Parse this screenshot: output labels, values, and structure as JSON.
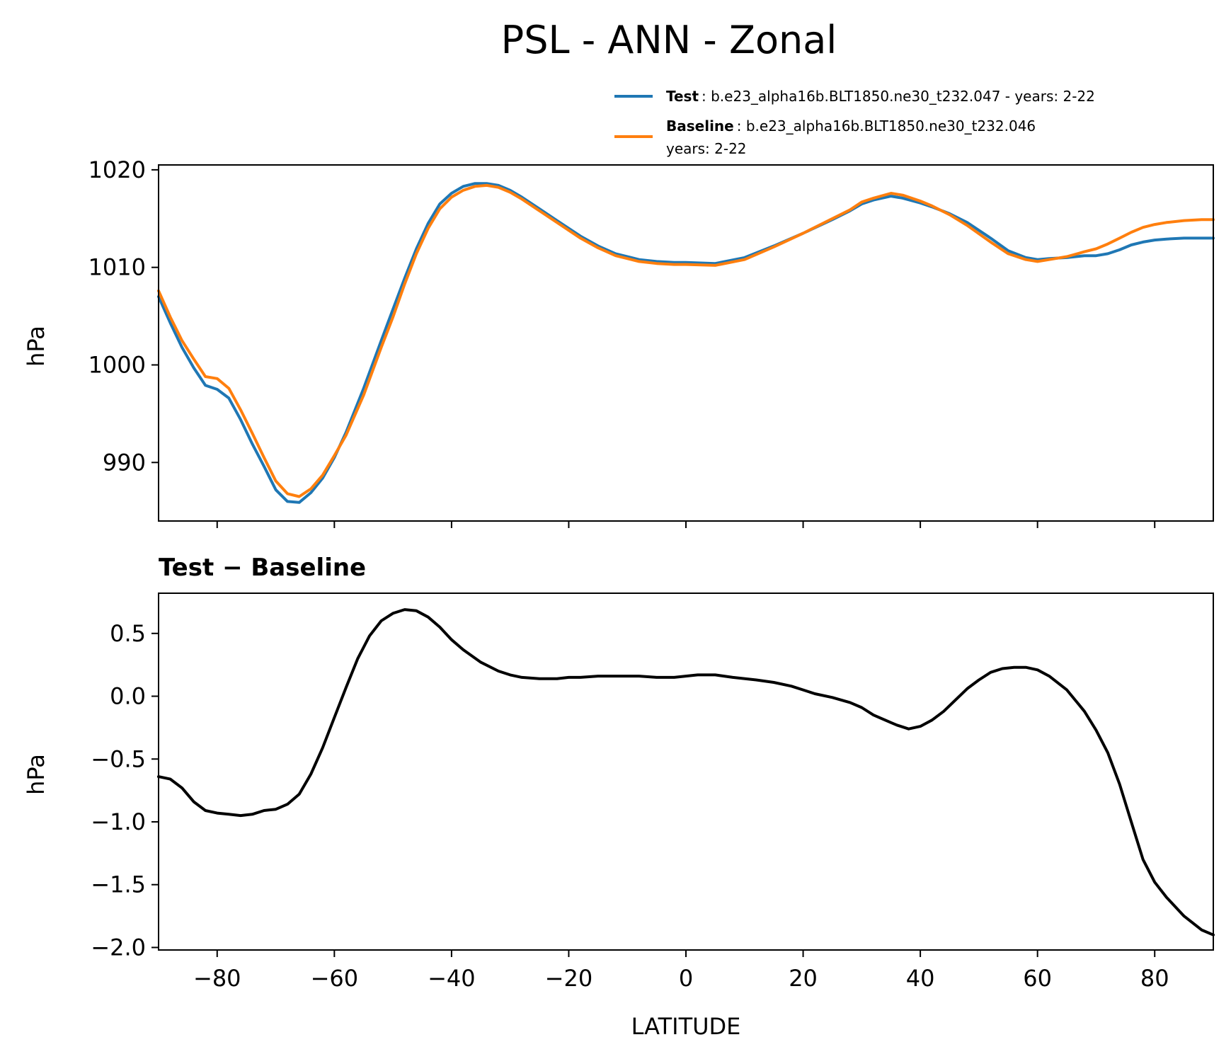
{
  "figure": {
    "title": "PSL - ANN - Zonal"
  },
  "legend": {
    "entries": [
      {
        "label": "Test",
        "detail": ": b.e23_alpha16b.BLT1850.ne30_t232.047 - years: 2-22",
        "detail2": "",
        "color": "#1f77b4"
      },
      {
        "label": "Baseline",
        "detail": ": b.e23_alpha16b.BLT1850.ne30_t232.046",
        "detail2": "years: 2-22",
        "color": "#ff7f0e"
      }
    ]
  },
  "chart_data": [
    {
      "type": "line",
      "title": "",
      "xlabel": "",
      "ylabel": "hPa",
      "xlim": [
        -90,
        90
      ],
      "ylim": [
        984,
        1020.5
      ],
      "xticks": [
        -80,
        -60,
        -40,
        -20,
        0,
        20,
        40,
        60,
        80
      ],
      "yticks": [
        990,
        1000,
        1010,
        1020
      ],
      "ytick_labels": [
        "990",
        "1000",
        "1010",
        "1020"
      ],
      "grid": false,
      "legend_position": "above-right",
      "series": [
        {
          "name": "Test",
          "color": "#1f77b4",
          "x": [
            -90,
            -88,
            -86,
            -84,
            -82,
            -80,
            -78,
            -76,
            -74,
            -72,
            -70,
            -68,
            -66,
            -64,
            -62,
            -60,
            -58,
            -55,
            -52,
            -50,
            -48,
            -46,
            -44,
            -42,
            -40,
            -38,
            -36,
            -34,
            -32,
            -30,
            -28,
            -25,
            -22,
            -18,
            -15,
            -12,
            -8,
            -5,
            -2,
            0,
            5,
            10,
            15,
            20,
            25,
            28,
            30,
            32,
            35,
            37,
            40,
            42,
            45,
            48,
            52,
            55,
            58,
            60,
            62,
            65,
            68,
            70,
            72,
            74,
            76,
            78,
            80,
            82,
            85,
            88,
            90
          ],
          "y": [
            1007.0,
            1004.3,
            1001.8,
            999.7,
            997.9,
            997.5,
            996.6,
            994.4,
            991.9,
            989.6,
            987.2,
            986.0,
            985.9,
            986.9,
            988.4,
            990.5,
            993.1,
            997.6,
            1002.5,
            1005.7,
            1008.9,
            1011.9,
            1014.5,
            1016.5,
            1017.6,
            1018.3,
            1018.6,
            1018.6,
            1018.4,
            1017.9,
            1017.2,
            1016.0,
            1014.8,
            1013.2,
            1012.2,
            1011.4,
            1010.8,
            1010.6,
            1010.5,
            1010.5,
            1010.4,
            1011.0,
            1012.2,
            1013.5,
            1014.9,
            1015.8,
            1016.5,
            1016.9,
            1017.3,
            1017.1,
            1016.6,
            1016.2,
            1015.5,
            1014.6,
            1013.0,
            1011.7,
            1011.0,
            1010.8,
            1010.9,
            1011.0,
            1011.2,
            1011.2,
            1011.4,
            1011.8,
            1012.3,
            1012.6,
            1012.8,
            1012.9,
            1013.0,
            1013.0,
            1013.0
          ]
        },
        {
          "name": "Baseline",
          "color": "#ff7f0e",
          "x": [
            -90,
            -88,
            -86,
            -84,
            -82,
            -80,
            -78,
            -76,
            -74,
            -72,
            -70,
            -68,
            -66,
            -64,
            -62,
            -60,
            -58,
            -55,
            -52,
            -50,
            -48,
            -46,
            -44,
            -42,
            -40,
            -38,
            -36,
            -34,
            -32,
            -30,
            -28,
            -25,
            -22,
            -18,
            -15,
            -12,
            -8,
            -5,
            -2,
            0,
            5,
            10,
            15,
            20,
            25,
            28,
            30,
            32,
            35,
            37,
            40,
            42,
            45,
            48,
            52,
            55,
            58,
            60,
            62,
            65,
            68,
            70,
            72,
            74,
            76,
            78,
            80,
            82,
            85,
            88,
            90
          ],
          "y": [
            1007.6,
            1004.9,
            1002.5,
            1000.6,
            998.8,
            998.6,
            997.6,
            995.4,
            993.0,
            990.5,
            988.1,
            986.8,
            986.5,
            987.3,
            988.7,
            990.7,
            992.8,
            996.9,
            1001.8,
            1004.9,
            1008.3,
            1011.4,
            1014.0,
            1016.0,
            1017.2,
            1017.9,
            1018.3,
            1018.4,
            1018.2,
            1017.7,
            1017.0,
            1015.8,
            1014.6,
            1013.0,
            1012.0,
            1011.2,
            1010.6,
            1010.4,
            1010.3,
            1010.3,
            1010.2,
            1010.8,
            1012.1,
            1013.5,
            1015.0,
            1015.9,
            1016.7,
            1017.1,
            1017.6,
            1017.4,
            1016.8,
            1016.3,
            1015.4,
            1014.3,
            1012.6,
            1011.4,
            1010.8,
            1010.6,
            1010.8,
            1011.1,
            1011.6,
            1011.9,
            1012.4,
            1013.0,
            1013.6,
            1014.1,
            1014.4,
            1014.6,
            1014.8,
            1014.9,
            1014.9
          ]
        }
      ]
    },
    {
      "type": "line",
      "title": "Test − Baseline",
      "xlabel": "LATITUDE",
      "ylabel": "hPa",
      "xlim": [
        -90,
        90
      ],
      "ylim": [
        -2.02,
        0.82
      ],
      "xticks": [
        -80,
        -60,
        -40,
        -20,
        0,
        20,
        40,
        60,
        80
      ],
      "xtick_labels": [
        "−80",
        "−60",
        "−40",
        "−20",
        "0",
        "20",
        "40",
        "60",
        "80"
      ],
      "yticks": [
        -2.0,
        -1.5,
        -1.0,
        -0.5,
        0.0,
        0.5
      ],
      "ytick_labels": [
        "−2.0",
        "−1.5",
        "−1.0",
        "−0.5",
        "0.0",
        "0.5"
      ],
      "grid": false,
      "series": [
        {
          "name": "",
          "color": "#000000",
          "x": [
            -90,
            -88,
            -86,
            -84,
            -82,
            -80,
            -78,
            -76,
            -74,
            -72,
            -70,
            -68,
            -66,
            -64,
            -62,
            -60,
            -58,
            -56,
            -54,
            -52,
            -50,
            -48,
            -46,
            -44,
            -42,
            -40,
            -38,
            -35,
            -32,
            -30,
            -28,
            -25,
            -22,
            -20,
            -18,
            -15,
            -12,
            -8,
            -5,
            -2,
            0,
            2,
            5,
            8,
            12,
            15,
            18,
            20,
            22,
            25,
            28,
            30,
            32,
            35,
            36,
            38,
            40,
            42,
            44,
            46,
            48,
            50,
            52,
            54,
            56,
            58,
            60,
            62,
            65,
            68,
            70,
            72,
            74,
            76,
            78,
            80,
            82,
            85,
            88,
            90
          ],
          "y": [
            -0.64,
            -0.66,
            -0.73,
            -0.84,
            -0.91,
            -0.93,
            -0.94,
            -0.95,
            -0.94,
            -0.91,
            -0.9,
            -0.86,
            -0.78,
            -0.62,
            -0.41,
            -0.17,
            0.07,
            0.3,
            0.48,
            0.6,
            0.66,
            0.69,
            0.68,
            0.63,
            0.55,
            0.45,
            0.37,
            0.27,
            0.2,
            0.17,
            0.15,
            0.14,
            0.14,
            0.15,
            0.15,
            0.16,
            0.16,
            0.16,
            0.15,
            0.15,
            0.16,
            0.17,
            0.17,
            0.15,
            0.13,
            0.11,
            0.08,
            0.05,
            0.02,
            -0.01,
            -0.05,
            -0.09,
            -0.15,
            -0.21,
            -0.23,
            -0.26,
            -0.24,
            -0.19,
            -0.12,
            -0.03,
            0.06,
            0.13,
            0.19,
            0.22,
            0.23,
            0.23,
            0.21,
            0.16,
            0.05,
            -0.12,
            -0.27,
            -0.45,
            -0.7,
            -1.0,
            -1.3,
            -1.48,
            -1.6,
            -1.75,
            -1.86,
            -1.9
          ]
        }
      ]
    }
  ]
}
